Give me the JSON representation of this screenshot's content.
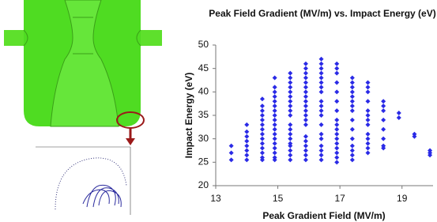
{
  "chart_data": {
    "type": "scatter",
    "title": "Peak Field Gradient (MV/m) vs. Impact Energy (eV)",
    "x_label": "Peak Gradient Field (MV/m)",
    "y_label": "Impact Energy (eV)",
    "color": "#2a2ae6",
    "xlim": [
      13,
      20
    ],
    "xticks": [
      13,
      15,
      17,
      19
    ],
    "ylim": [
      20,
      50
    ],
    "yticks": [
      20,
      25,
      30,
      35,
      40,
      45,
      50
    ],
    "x": [
      13.5,
      13.5,
      13.5,
      14,
      14,
      14,
      14,
      14,
      14,
      14,
      14,
      14.5,
      14.5,
      14.5,
      14.5,
      14.5,
      14.5,
      14.5,
      14.5,
      14.5,
      14.5,
      14.5,
      14.5,
      14.5,
      14.5,
      14.9,
      14.9,
      14.9,
      14.9,
      14.9,
      14.9,
      14.9,
      14.9,
      14.9,
      14.9,
      14.9,
      14.9,
      14.9,
      14.9,
      14.9,
      14.9,
      14.9,
      14.9,
      15.4,
      15.4,
      15.4,
      15.4,
      15.4,
      15.4,
      15.4,
      15.4,
      15.4,
      15.4,
      15.4,
      15.4,
      15.4,
      15.4,
      15.4,
      15.4,
      15.4,
      15.4,
      15.4,
      15.9,
      15.9,
      15.9,
      15.9,
      15.9,
      15.9,
      15.9,
      15.9,
      15.9,
      15.9,
      15.9,
      15.9,
      15.9,
      15.9,
      15.9,
      15.9,
      15.9,
      15.9,
      15.9,
      15.9,
      16.4,
      16.4,
      16.4,
      16.4,
      16.4,
      16.4,
      16.4,
      16.4,
      16.4,
      16.4,
      16.4,
      16.4,
      16.4,
      16.4,
      16.4,
      16.4,
      16.4,
      16.4,
      16.4,
      16.9,
      16.9,
      16.9,
      16.9,
      16.9,
      16.9,
      16.9,
      16.9,
      16.9,
      16.9,
      16.9,
      16.9,
      16.9,
      16.9,
      16.9,
      16.9,
      16.9,
      17.4,
      17.4,
      17.4,
      17.4,
      17.4,
      17.4,
      17.4,
      17.4,
      17.4,
      17.4,
      17.4,
      17.4,
      17.4,
      17.4,
      17.4,
      17.9,
      17.9,
      17.9,
      17.9,
      17.9,
      17.9,
      17.9,
      17.9,
      17.9,
      17.9,
      17.9,
      17.9,
      17.9,
      18.4,
      18.4,
      18.4,
      18.4,
      18.4,
      18.4,
      18.4,
      18.4,
      18.9,
      18.9,
      19.4,
      19.4,
      19.9,
      19.9,
      19.9
    ],
    "values": [
      25.5,
      27,
      28.5,
      25.5,
      26.5,
      27.5,
      28.5,
      29.5,
      30.5,
      31.5,
      33,
      25.5,
      26,
      27,
      28,
      29,
      30,
      31,
      32,
      33,
      34,
      35,
      36,
      37,
      38.5,
      25.5,
      26,
      27,
      28,
      29,
      30,
      31,
      32,
      33,
      34,
      35,
      36,
      37,
      38,
      39,
      40,
      41,
      43,
      25.5,
      26.5,
      27.5,
      28.5,
      29,
      30,
      31,
      32,
      33,
      35,
      36,
      37,
      38,
      39,
      40,
      41,
      42,
      43,
      44,
      25.5,
      26.5,
      27.5,
      28.5,
      29.5,
      30.5,
      33,
      34,
      35,
      36,
      37,
      38,
      39,
      40,
      41,
      42,
      43,
      44,
      45,
      46,
      25.5,
      26.5,
      27.5,
      28.5,
      30,
      31,
      33,
      35,
      36,
      37,
      38,
      40,
      41,
      42,
      43,
      44,
      45,
      46,
      47,
      25,
      26,
      27,
      28,
      29,
      30,
      31,
      32,
      33,
      34,
      36,
      38,
      40,
      42,
      44,
      45,
      46,
      25.5,
      26.5,
      27.5,
      28.5,
      30,
      32,
      34,
      36,
      37,
      38,
      39,
      40,
      41,
      42,
      43,
      27,
      28,
      29,
      30,
      31,
      33,
      34,
      35,
      36,
      38,
      40,
      41,
      42,
      28,
      28.5,
      30,
      32,
      34,
      36,
      37,
      38,
      34.5,
      35.5,
      30.5,
      31,
      26.5,
      27,
      27.5
    ]
  }
}
